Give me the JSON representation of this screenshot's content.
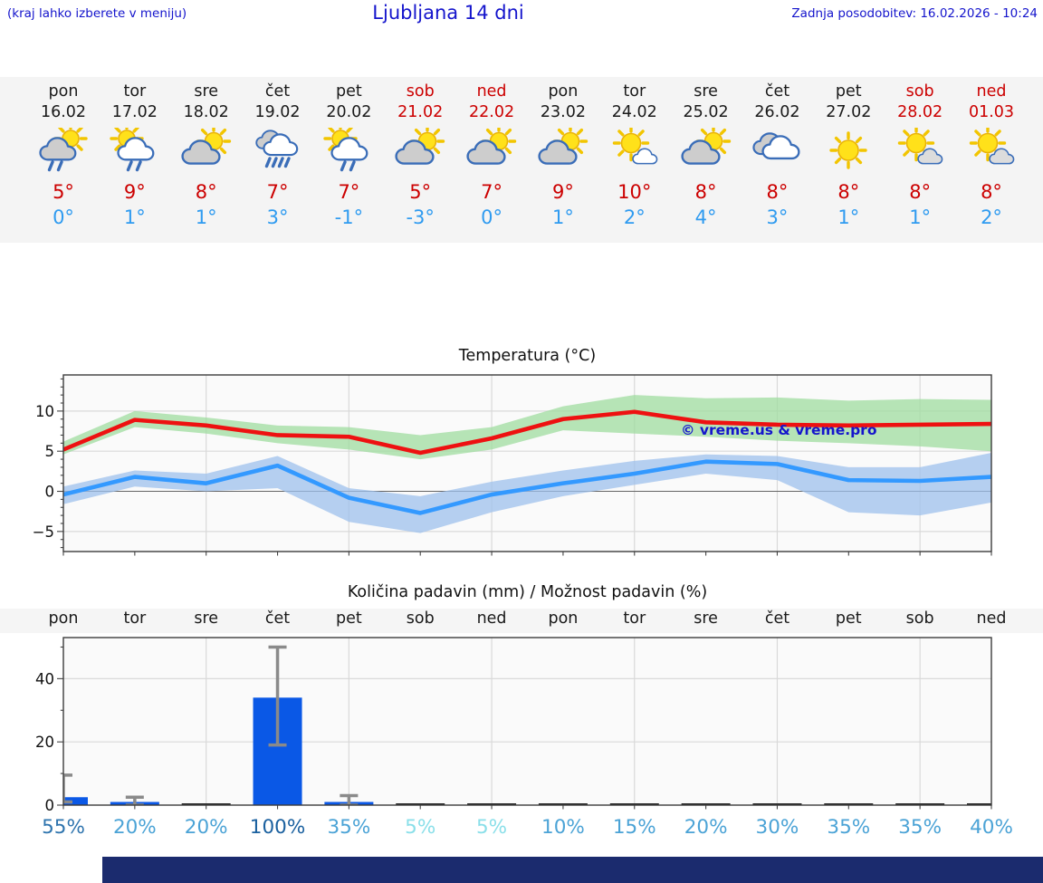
{
  "header": {
    "place_hint": "(kraj lahko izberete v meniju)",
    "title": "Ljubljana 14 dni",
    "last_update": "Zadnja posodobitev: 16.02.2026 - 10:24"
  },
  "colors": {
    "link_blue": "#1414cc",
    "weekend_red": "#cc0000",
    "weekday_black": "#1a1a1a",
    "tmax_red": "#cc0000",
    "tmin_blue": "#2f9bf0",
    "line_red": "#ee1111",
    "line_blue": "#3399ff",
    "band_green": "#9fdc9f",
    "band_blue": "#9ec0ec",
    "bar_blue": "#0a58e6",
    "error_gray": "#8a8a8a",
    "grid_gray": "#d9d9d9",
    "watermark_blue": "#1515cc",
    "footer_navy": "#1b2b6e",
    "strip_bg": "#f4f4f4"
  },
  "forecast": {
    "days": [
      {
        "name": "pon",
        "date": "16.02",
        "weekend": false,
        "icon": "sun-cloud-rain-gray",
        "tmax": "5°",
        "tmin": "0°"
      },
      {
        "name": "tor",
        "date": "17.02",
        "weekend": false,
        "icon": "sun-cloud-rain-white",
        "tmax": "9°",
        "tmin": "1°"
      },
      {
        "name": "sre",
        "date": "18.02",
        "weekend": false,
        "icon": "sun-cloud-gray",
        "tmax": "8°",
        "tmin": "1°"
      },
      {
        "name": "čet",
        "date": "19.02",
        "weekend": false,
        "icon": "rain-heavy",
        "tmax": "7°",
        "tmin": "3°"
      },
      {
        "name": "pet",
        "date": "20.02",
        "weekend": false,
        "icon": "sun-cloud-rain-white",
        "tmax": "7°",
        "tmin": "-1°"
      },
      {
        "name": "sob",
        "date": "21.02",
        "weekend": true,
        "icon": "sun-cloud-gray",
        "tmax": "5°",
        "tmin": "-3°"
      },
      {
        "name": "ned",
        "date": "22.02",
        "weekend": true,
        "icon": "sun-cloud-gray",
        "tmax": "7°",
        "tmin": "0°"
      },
      {
        "name": "pon",
        "date": "23.02",
        "weekend": false,
        "icon": "sun-cloud-gray",
        "tmax": "9°",
        "tmin": "1°"
      },
      {
        "name": "tor",
        "date": "24.02",
        "weekend": false,
        "icon": "sun-smallcloud-white",
        "tmax": "10°",
        "tmin": "2°"
      },
      {
        "name": "sre",
        "date": "25.02",
        "weekend": false,
        "icon": "sun-cloud-gray",
        "tmax": "8°",
        "tmin": "4°"
      },
      {
        "name": "čet",
        "date": "26.02",
        "weekend": false,
        "icon": "cloudy",
        "tmax": "8°",
        "tmin": "3°"
      },
      {
        "name": "pet",
        "date": "27.02",
        "weekend": false,
        "icon": "sun",
        "tmax": "8°",
        "tmin": "1°"
      },
      {
        "name": "sob",
        "date": "28.02",
        "weekend": true,
        "icon": "sun-smallcloud-gray",
        "tmax": "8°",
        "tmin": "1°"
      },
      {
        "name": "ned",
        "date": "01.03",
        "weekend": true,
        "icon": "sun-smallcloud-gray",
        "tmax": "8°",
        "tmin": "2°"
      }
    ]
  },
  "chart_data": [
    {
      "type": "line",
      "title": "Temperatura (°C)",
      "categories": [
        "pon 16.02",
        "tor 17.02",
        "sre 18.02",
        "čet 19.02",
        "pet 20.02",
        "sob 21.02",
        "ned 22.02",
        "pon 23.02",
        "tor 24.02",
        "sre 25.02",
        "čet 26.02",
        "pet 27.02",
        "sob 28.02",
        "ned 01.03"
      ],
      "ylim": [
        -7.5,
        14.5
      ],
      "yticks": [
        -5,
        0,
        5,
        10
      ],
      "grid": true,
      "series": [
        {
          "name": "max temperature",
          "color": "#ee1111",
          "values": [
            5.2,
            8.9,
            8.2,
            7.0,
            6.8,
            4.8,
            6.6,
            9.0,
            9.9,
            8.6,
            8.3,
            8.2,
            8.3,
            8.4
          ],
          "band_upper": [
            6.2,
            10.0,
            9.2,
            8.2,
            8.0,
            7.0,
            8.0,
            10.6,
            12.0,
            11.6,
            11.7,
            11.3,
            11.5,
            11.4
          ],
          "band_lower": [
            4.6,
            8.0,
            7.2,
            6.0,
            5.2,
            4.0,
            5.2,
            7.6,
            7.2,
            6.8,
            6.3,
            6.0,
            5.6,
            5.0
          ]
        },
        {
          "name": "min temperature",
          "color": "#3399ff",
          "values": [
            -0.4,
            1.8,
            1.0,
            3.2,
            -0.8,
            -2.7,
            -0.4,
            1.0,
            2.2,
            3.7,
            3.4,
            1.4,
            1.3,
            1.8
          ],
          "band_upper": [
            0.6,
            2.6,
            2.2,
            4.4,
            0.4,
            -0.6,
            1.2,
            2.6,
            3.8,
            4.6,
            4.4,
            3.0,
            3.0,
            4.8
          ],
          "band_lower": [
            -1.6,
            0.6,
            0.0,
            0.4,
            -3.8,
            -5.2,
            -2.6,
            -0.6,
            0.8,
            2.2,
            1.4,
            -2.6,
            -3.0,
            -1.4
          ]
        }
      ],
      "watermark": "© vreme.us & vreme.pro"
    },
    {
      "type": "bar",
      "title": "Količina padavin (mm) / Možnost padavin (%)",
      "categories": [
        "pon",
        "tor",
        "sre",
        "čet",
        "pet",
        "sob",
        "ned",
        "pon",
        "tor",
        "sre",
        "čet",
        "pet",
        "sob",
        "ned"
      ],
      "values": [
        2.5,
        1.0,
        0.3,
        34,
        1.0,
        0.25,
        0.2,
        0.2,
        0.25,
        0.2,
        0.2,
        0.3,
        0.2,
        0.3
      ],
      "errorbars": [
        [
          1,
          9.5
        ],
        [
          0,
          2.5
        ],
        null,
        [
          19,
          50
        ],
        [
          0,
          3
        ],
        null,
        null,
        null,
        null,
        null,
        null,
        null,
        null,
        null
      ],
      "ylim": [
        0,
        53
      ],
      "yticks": [
        0,
        20,
        40
      ],
      "grid": true,
      "probability_percent": [
        55,
        20,
        20,
        100,
        35,
        5,
        5,
        10,
        15,
        20,
        30,
        35,
        35,
        40
      ],
      "probability_colors": [
        "#2e74ae",
        "#4ba3d6",
        "#4ba3d6",
        "#1a609f",
        "#4ba3d6",
        "#8adfe9",
        "#8adfe9",
        "#4ba3d6",
        "#4ba3d6",
        "#4ba3d6",
        "#4ba3d6",
        "#4ba3d6",
        "#4ba3d6",
        "#4ba3d6"
      ]
    }
  ]
}
